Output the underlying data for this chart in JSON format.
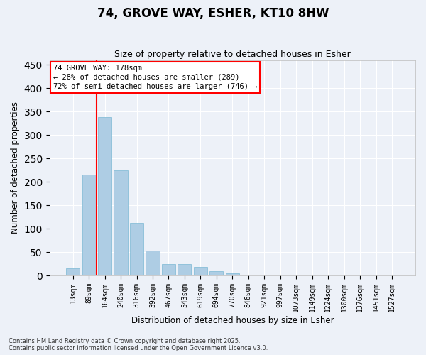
{
  "title": "74, GROVE WAY, ESHER, KT10 8HW",
  "subtitle": "Size of property relative to detached houses in Esher",
  "xlabel": "Distribution of detached houses by size in Esher",
  "ylabel": "Number of detached properties",
  "categories": [
    "13sqm",
    "89sqm",
    "164sqm",
    "240sqm",
    "316sqm",
    "392sqm",
    "467sqm",
    "543sqm",
    "619sqm",
    "694sqm",
    "770sqm",
    "846sqm",
    "921sqm",
    "997sqm",
    "1073sqm",
    "1149sqm",
    "1224sqm",
    "1300sqm",
    "1376sqm",
    "1451sqm",
    "1527sqm"
  ],
  "values": [
    15,
    215,
    338,
    225,
    112,
    53,
    25,
    25,
    19,
    9,
    5,
    2,
    1,
    0,
    1,
    0,
    0,
    0,
    0,
    2,
    2
  ],
  "bar_color": "#aecde4",
  "bar_edge_color": "#7ab8d4",
  "red_line_x": 1.5,
  "ylim": [
    0,
    460
  ],
  "yticks": [
    0,
    50,
    100,
    150,
    200,
    250,
    300,
    350,
    400,
    450
  ],
  "annotation_title": "74 GROVE WAY: 178sqm",
  "annotation_line1": "← 28% of detached houses are smaller (289)",
  "annotation_line2": "72% of semi-detached houses are larger (746) →",
  "background_color": "#edf1f8",
  "grid_color": "#ffffff",
  "footer1": "Contains HM Land Registry data © Crown copyright and database right 2025.",
  "footer2": "Contains public sector information licensed under the Open Government Licence v3.0."
}
